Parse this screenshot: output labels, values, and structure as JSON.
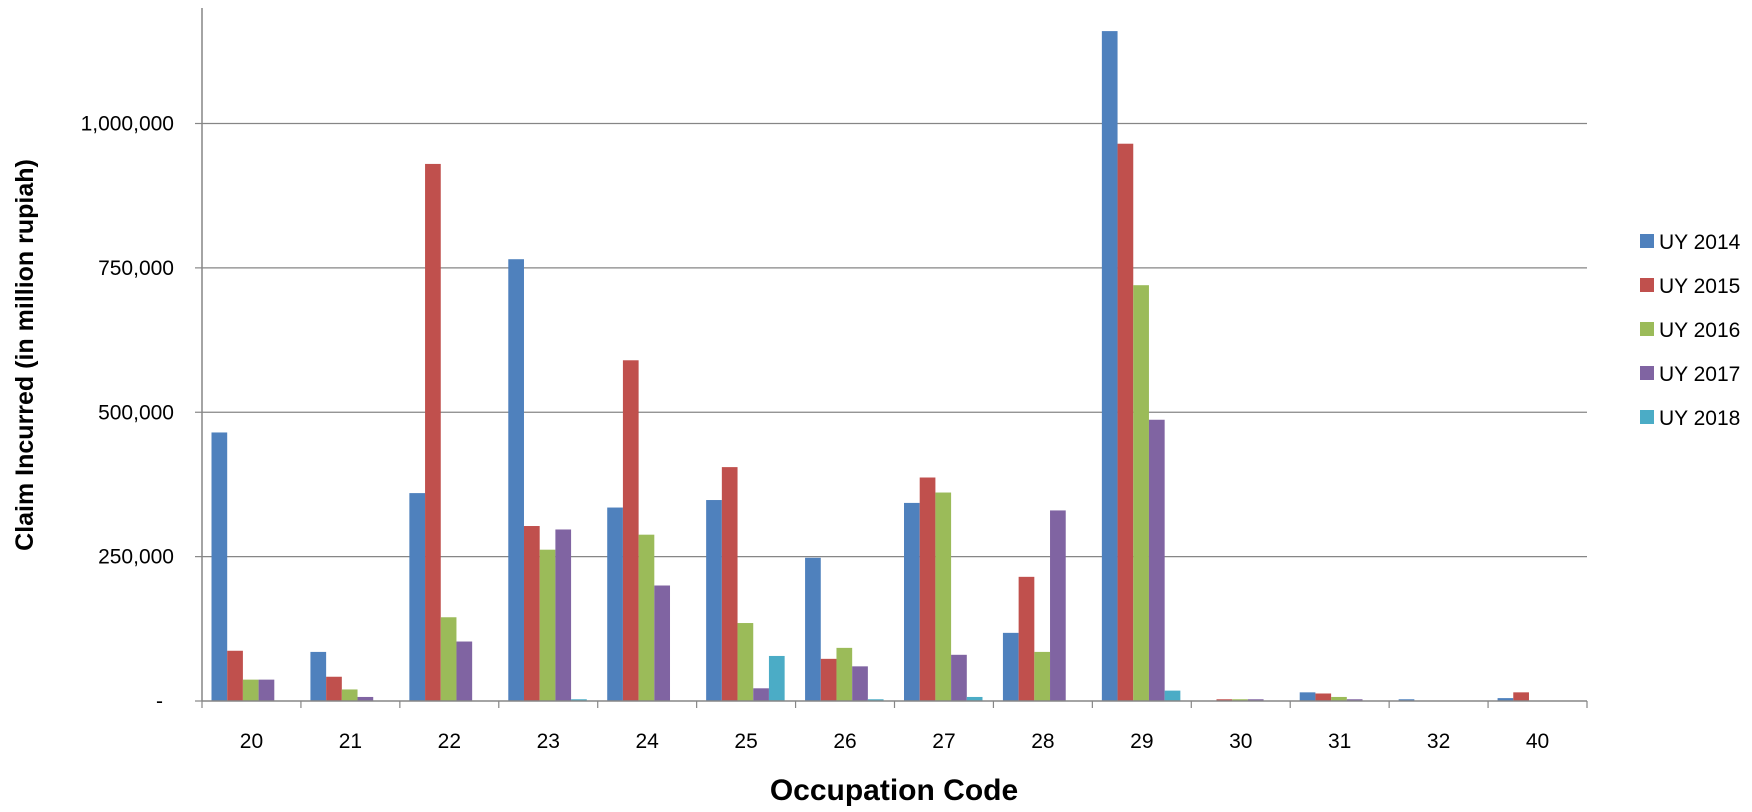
{
  "chart_data": {
    "type": "bar",
    "xlabel": "Occupation Code",
    "ylabel": "Claim Incurred (in million rupiah)",
    "ylim": [
      0,
      1200000
    ],
    "yticks": [
      {
        "value": 0,
        "label": "-"
      },
      {
        "value": 250000,
        "label": "250,000"
      },
      {
        "value": 500000,
        "label": "500,000"
      },
      {
        "value": 750000,
        "label": "750,000"
      },
      {
        "value": 1000000,
        "label": "1,000,000"
      }
    ],
    "grid": true,
    "legend_position": "right",
    "categories": [
      "20",
      "21",
      "22",
      "23",
      "24",
      "25",
      "26",
      "27",
      "28",
      "29",
      "30",
      "31",
      "32",
      "40"
    ],
    "series": [
      {
        "name": "UY 2014",
        "color": "#4f81bd",
        "values": [
          465000,
          85000,
          360000,
          765000,
          335000,
          348000,
          248000,
          343000,
          118000,
          1160000,
          0,
          15000,
          3000,
          5000
        ]
      },
      {
        "name": "UY 2015",
        "color": "#c0504d",
        "values": [
          87000,
          42000,
          930000,
          303000,
          590000,
          405000,
          73000,
          387000,
          215000,
          965000,
          3000,
          13000,
          0,
          15000
        ]
      },
      {
        "name": "UY 2016",
        "color": "#9bbb59",
        "values": [
          37000,
          20000,
          145000,
          262000,
          288000,
          135000,
          92000,
          361000,
          85000,
          720000,
          3000,
          7000,
          0,
          0
        ]
      },
      {
        "name": "UY 2017",
        "color": "#8064a2",
        "values": [
          37000,
          7000,
          103000,
          297000,
          200000,
          22000,
          60000,
          80000,
          330000,
          487000,
          3000,
          3000,
          0,
          0
        ]
      },
      {
        "name": "UY 2018",
        "color": "#4bacc6",
        "values": [
          0,
          0,
          0,
          3000,
          0,
          78000,
          3000,
          7000,
          0,
          18000,
          0,
          0,
          0,
          0
        ]
      }
    ]
  }
}
